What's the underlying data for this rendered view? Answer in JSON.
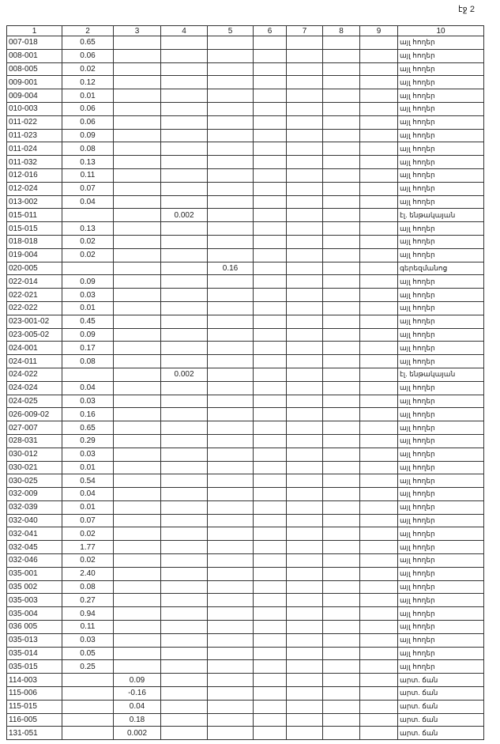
{
  "page_label": "էջ 2",
  "headers": [
    "1",
    "2",
    "3",
    "4",
    "5",
    "6",
    "7",
    "8",
    "9",
    "10"
  ],
  "rows": [
    [
      "007-018",
      "0.65",
      "",
      "",
      "",
      "այլ հողեր"
    ],
    [
      "008-001",
      "0.06",
      "",
      "",
      "",
      "այլ հողեր"
    ],
    [
      "008-005",
      "0.02",
      "",
      "",
      "",
      "այլ հողեր"
    ],
    [
      "009-001",
      "0.12",
      "",
      "",
      "",
      "այլ հողեր"
    ],
    [
      "009-004",
      "0.01",
      "",
      "",
      "",
      "այլ հողեր"
    ],
    [
      "010-003",
      "0.06",
      "",
      "",
      "",
      "այլ հողեր"
    ],
    [
      "011-022",
      "0.06",
      "",
      "",
      "",
      "այլ հողեր"
    ],
    [
      "011-023",
      "0.09",
      "",
      "",
      "",
      "այլ հողեր"
    ],
    [
      "011-024",
      "0.08",
      "",
      "",
      "",
      "այլ հողեր"
    ],
    [
      "011-032",
      "0.13",
      "",
      "",
      "",
      "այլ հողեր"
    ],
    [
      "012-016",
      "0.11",
      "",
      "",
      "",
      "այլ հողեր"
    ],
    [
      "012-024",
      "0.07",
      "",
      "",
      "",
      "այլ հողեր"
    ],
    [
      "013-002",
      "0.04",
      "",
      "",
      "",
      "այլ հողեր"
    ],
    [
      "015-011",
      "",
      "",
      "0.002",
      "",
      "էլ. ենթակայան"
    ],
    [
      "015-015",
      "0.13",
      "",
      "",
      "",
      "այլ հողեր"
    ],
    [
      "018-018",
      "0.02",
      "",
      "",
      "",
      "այլ հողեր"
    ],
    [
      "019-004",
      "0.02",
      "",
      "",
      "",
      "այլ հողեր"
    ],
    [
      "020-005",
      "",
      "",
      "",
      "0.16",
      "գերեզմանոց"
    ],
    [
      "022-014",
      "0.09",
      "",
      "",
      "",
      "այլ հողեր"
    ],
    [
      "022-021",
      "0.03",
      "",
      "",
      "",
      "այլ հողեր"
    ],
    [
      "022-022",
      "0.01",
      "",
      "",
      "",
      "այլ հողեր"
    ],
    [
      "023-001-02",
      "0.45",
      "",
      "",
      "",
      "այլ հողեր"
    ],
    [
      "023-005-02",
      "0.09",
      "",
      "",
      "",
      "այլ հողեր"
    ],
    [
      "024-001",
      "0.17",
      "",
      "",
      "",
      "այլ հողեր"
    ],
    [
      "024-011",
      "0.08",
      "",
      "",
      "",
      "այլ հողեր"
    ],
    [
      "024-022",
      "",
      "",
      "0.002",
      "",
      "էլ. ենթակայան"
    ],
    [
      "024-024",
      "0.04",
      "",
      "",
      "",
      "այլ հողեր"
    ],
    [
      "024-025",
      "0.03",
      "",
      "",
      "",
      "այլ հողեր"
    ],
    [
      "026-009-02",
      "0.16",
      "",
      "",
      "",
      "այլ հողեր"
    ],
    [
      "027-007",
      "0.65",
      "",
      "",
      "",
      "այլ հողեր"
    ],
    [
      "028-031",
      "0.29",
      "",
      "",
      "",
      "այլ հողեր"
    ],
    [
      "030-012",
      "0.03",
      "",
      "",
      "",
      "այլ հողեր"
    ],
    [
      "030-021",
      "0.01",
      "",
      "",
      "",
      "այլ հողեր"
    ],
    [
      "030-025",
      "0.54",
      "",
      "",
      "",
      "այլ հողեր"
    ],
    [
      "032-009",
      "0.04",
      "",
      "",
      "",
      "այլ հողեր"
    ],
    [
      "032-039",
      "0.01",
      "",
      "",
      "",
      "այլ հողեր"
    ],
    [
      "032-040",
      "0.07",
      "",
      "",
      "",
      "այլ հողեր"
    ],
    [
      "032-041",
      "0.02",
      "",
      "",
      "",
      "այլ հողեր"
    ],
    [
      "032-045",
      "1.77",
      "",
      "",
      "",
      "այլ հողեր"
    ],
    [
      "032-046",
      "0.02",
      "",
      "",
      "",
      "այլ հողեր"
    ],
    [
      "035-001",
      "2.40",
      "",
      "",
      "",
      "այլ հողեր"
    ],
    [
      "035 002",
      "0.08",
      "",
      "",
      "",
      "այլ հողեր"
    ],
    [
      "035-003",
      "0.27",
      "",
      "",
      "",
      "այլ հողեր"
    ],
    [
      "035-004",
      "0.94",
      "",
      "",
      "",
      "այլ հողեր"
    ],
    [
      "036 005",
      "0.11",
      "",
      "",
      "",
      "այլ հողեր"
    ],
    [
      "035-013",
      "0.03",
      "",
      "",
      "",
      "այլ հողեր"
    ],
    [
      "035-014",
      "0.05",
      "",
      "",
      "",
      "այլ հողեր"
    ],
    [
      "035-015",
      "0.25",
      "",
      "",
      "",
      "այլ հողեր"
    ],
    [
      "114-003",
      "",
      "0.09",
      "",
      "",
      "արտ. ճան"
    ],
    [
      "115-006",
      "",
      "-0.16",
      "",
      "",
      "արտ. ճան"
    ],
    [
      "115-015",
      "",
      "0.04",
      "",
      "",
      "արտ. ճան"
    ],
    [
      "116-005",
      "",
      "0.18",
      "",
      "",
      "արտ. ճան"
    ],
    [
      "131-051",
      "",
      "0.002",
      "",
      "",
      "արտ. ճան"
    ]
  ]
}
